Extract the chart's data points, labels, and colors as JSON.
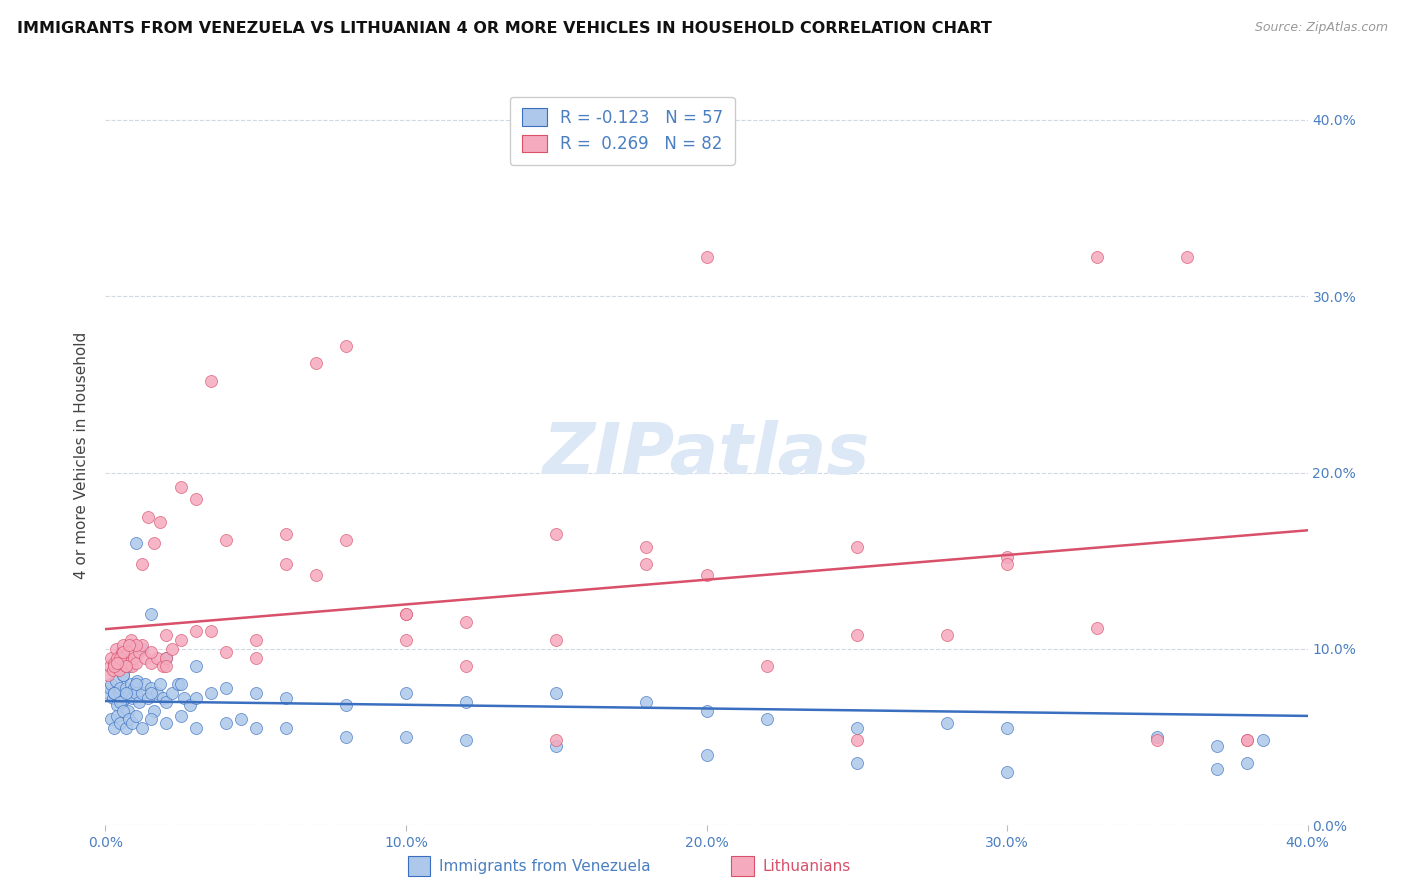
{
  "title": "IMMIGRANTS FROM VENEZUELA VS LITHUANIAN 4 OR MORE VEHICLES IN HOUSEHOLD CORRELATION CHART",
  "source": "Source: ZipAtlas.com",
  "ylabel": "4 or more Vehicles in Household",
  "legend_label1": "Immigrants from Venezuela",
  "legend_label2": "Lithuanians",
  "R1": -0.123,
  "N1": 57,
  "R2": 0.269,
  "N2": 82,
  "color1": "#adc8ea",
  "color2": "#f5aabe",
  "line_color1": "#3a6fc0",
  "line_color2": "#d8506a",
  "watermark": "ZIPatlas",
  "watermark_color": "#dce8f5",
  "background_color": "#ffffff",
  "grid_color": "#d0d8e8",
  "xmin": 0.0,
  "xmax": 40.0,
  "ymin": 0.0,
  "ymax": 42.0,
  "venezuela_x": [
    0.1,
    0.15,
    0.2,
    0.25,
    0.3,
    0.35,
    0.4,
    0.45,
    0.5,
    0.55,
    0.6,
    0.65,
    0.7,
    0.75,
    0.8,
    0.85,
    0.9,
    0.95,
    1.0,
    1.05,
    1.1,
    1.2,
    1.3,
    1.4,
    1.5,
    1.6,
    1.7,
    1.8,
    1.9,
    2.0,
    2.2,
    2.4,
    2.6,
    2.8,
    3.0,
    3.5,
    4.0,
    5.0,
    6.0,
    8.0,
    10.0,
    12.0,
    15.0,
    18.0,
    20.0,
    22.0,
    25.0,
    28.0,
    30.0,
    35.0,
    37.0,
    38.5,
    0.3,
    0.5,
    0.7,
    1.0,
    1.5
  ],
  "venezuela_y": [
    7.5,
    7.8,
    8.0,
    7.2,
    7.5,
    8.2,
    6.8,
    7.5,
    7.8,
    7.0,
    8.5,
    7.2,
    7.8,
    6.5,
    7.5,
    8.0,
    7.2,
    7.8,
    7.5,
    8.2,
    7.0,
    7.5,
    8.0,
    7.2,
    7.8,
    6.5,
    7.5,
    8.0,
    7.2,
    7.0,
    7.5,
    8.0,
    7.2,
    6.8,
    7.2,
    7.5,
    7.8,
    7.5,
    7.2,
    6.8,
    7.5,
    7.0,
    7.5,
    7.0,
    6.5,
    6.0,
    5.5,
    5.8,
    5.5,
    5.0,
    4.5,
    4.8,
    7.5,
    7.0,
    7.5,
    8.0,
    7.5
  ],
  "venezuela_extra_x": [
    0.2,
    0.3,
    0.4,
    0.5,
    0.6,
    0.7,
    0.8,
    0.9,
    1.0,
    1.2,
    1.5,
    2.0,
    2.5,
    3.0,
    4.0,
    5.0,
    8.0,
    12.0,
    20.0,
    25.0,
    30.0,
    37.0,
    38.0,
    1.0,
    1.5,
    2.5,
    4.5,
    6.0,
    10.0,
    15.0,
    0.4,
    0.6,
    0.8,
    1.2,
    2.0,
    3.0
  ],
  "venezuela_extra_y": [
    6.0,
    5.5,
    6.2,
    5.8,
    6.5,
    5.5,
    6.0,
    5.8,
    6.2,
    5.5,
    6.0,
    5.8,
    6.2,
    5.5,
    5.8,
    5.5,
    5.0,
    4.8,
    4.0,
    3.5,
    3.0,
    3.2,
    3.5,
    16.0,
    12.0,
    8.0,
    6.0,
    5.5,
    5.0,
    4.5,
    9.0,
    8.5,
    9.0,
    10.0,
    9.5,
    9.0
  ],
  "lithuanian_x": [
    0.1,
    0.15,
    0.2,
    0.25,
    0.3,
    0.35,
    0.4,
    0.45,
    0.5,
    0.55,
    0.6,
    0.65,
    0.7,
    0.75,
    0.8,
    0.85,
    0.9,
    0.95,
    1.0,
    1.1,
    1.2,
    1.3,
    1.4,
    1.5,
    1.6,
    1.7,
    1.8,
    1.9,
    2.0,
    2.2,
    2.5,
    3.0,
    3.5,
    4.0,
    5.0,
    6.0,
    7.0,
    8.0,
    10.0,
    12.0,
    15.0,
    18.0,
    20.0,
    22.0,
    25.0,
    28.0,
    30.0,
    33.0,
    36.0,
    38.0,
    0.3,
    0.5,
    0.7,
    1.0,
    1.5,
    2.0,
    3.0,
    5.0,
    8.0,
    12.0,
    15.0,
    20.0,
    25.0,
    30.0,
    35.0,
    38.0,
    2.5,
    4.0,
    7.0,
    10.0,
    18.0,
    25.0,
    33.0,
    0.4,
    0.6,
    0.8,
    1.2,
    2.0,
    3.5,
    6.0,
    10.0,
    15.0
  ],
  "lithuanian_y": [
    8.5,
    9.0,
    9.5,
    8.8,
    9.2,
    10.0,
    9.5,
    8.8,
    9.2,
    9.8,
    10.2,
    9.5,
    9.0,
    9.8,
    9.2,
    10.5,
    9.0,
    9.5,
    9.2,
    9.8,
    10.2,
    9.5,
    17.5,
    9.2,
    16.0,
    9.5,
    17.2,
    9.0,
    9.5,
    10.0,
    10.5,
    18.5,
    11.0,
    9.8,
    10.5,
    14.8,
    14.2,
    16.2,
    10.5,
    11.5,
    16.5,
    15.8,
    32.2,
    9.0,
    15.8,
    10.8,
    15.2,
    11.2,
    32.2,
    4.8,
    9.0,
    9.5,
    9.0,
    10.2,
    9.8,
    10.8,
    11.0,
    9.5,
    27.2,
    9.0,
    4.8,
    14.2,
    4.8,
    14.8,
    4.8,
    4.8,
    19.2,
    16.2,
    26.2,
    12.0,
    14.8,
    10.8,
    32.2,
    9.2,
    9.8,
    10.2,
    14.8,
    9.0,
    25.2,
    16.5,
    12.0,
    10.5
  ]
}
